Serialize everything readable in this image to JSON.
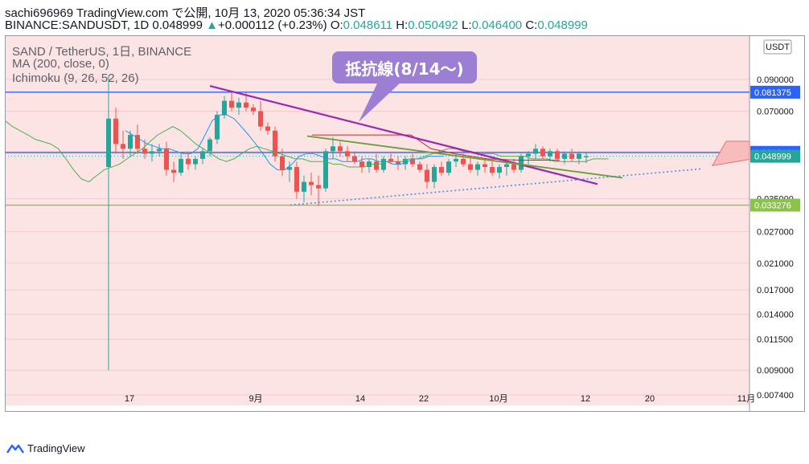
{
  "header": {
    "line1": "sachi696969 TradingView.com で公開, 10月 13, 2020 05:36:34 JST",
    "symbol": "BINANCE:SANDUSDT, 1D",
    "last": "0.048999",
    "change": "+0.000112 (+0.23%)",
    "open_label": "O:",
    "open": "0.048611",
    "high_label": "H:",
    "high": "0.050492",
    "low_label": "L:",
    "low": "0.046400",
    "close_label": "C:",
    "close": "0.048999"
  },
  "legend": {
    "title": "SAND / TetherUS, 1日, BINANCE",
    "ma": "MA (200, close, 0)",
    "ichimoku": "Ichimoku (9, 26, 52, 26)"
  },
  "callout": "抵抗線(8/14〜)",
  "currency_badge": "USDT",
  "footer": {
    "brand": "TradingView"
  },
  "colors": {
    "up": "#26a69a",
    "down": "#ef5350",
    "resistance": "#9c27b0",
    "support_dotted": "#4f8fe8",
    "bg": "#fde4e4"
  },
  "chart_data": {
    "type": "candlestick",
    "y_scale": "log",
    "y_ticks": [
      "0.090000",
      "0.070000",
      "0.050000",
      "0.035000",
      "0.027000",
      "0.021000",
      "0.017000",
      "0.014000",
      "0.011500",
      "0.009000",
      "0.007400"
    ],
    "x_ticks": [
      "17",
      "9月",
      "14",
      "22",
      "10月",
      "12",
      "20",
      "11月"
    ],
    "price_labels": [
      {
        "value": "0.081375",
        "color": "#2962ff"
      },
      {
        "value": "0.050541",
        "color": "#2962ff"
      },
      {
        "value": "0.048999",
        "color": "#26a69a"
      },
      {
        "value": "0.033276",
        "color": "#8bc34a"
      }
    ],
    "horizontal_lines": [
      {
        "price": 0.081375,
        "color": "#2962ff"
      },
      {
        "price": 0.050541,
        "color": "#2962ff"
      },
      {
        "price": 0.033276,
        "color": "#8bc34a"
      }
    ],
    "candles": [
      [
        0.045,
        0.093,
        0.009,
        0.066
      ],
      [
        0.066,
        0.072,
        0.05,
        0.054
      ],
      [
        0.054,
        0.06,
        0.048,
        0.052
      ],
      [
        0.052,
        0.06,
        0.049,
        0.058
      ],
      [
        0.058,
        0.063,
        0.05,
        0.052
      ],
      [
        0.052,
        0.056,
        0.048,
        0.05
      ],
      [
        0.05,
        0.054,
        0.047,
        0.051
      ],
      [
        0.051,
        0.054,
        0.049,
        0.052
      ],
      [
        0.052,
        0.055,
        0.042,
        0.044
      ],
      [
        0.044,
        0.047,
        0.04,
        0.043
      ],
      [
        0.043,
        0.05,
        0.042,
        0.048
      ],
      [
        0.048,
        0.05,
        0.044,
        0.046
      ],
      [
        0.046,
        0.049,
        0.044,
        0.048
      ],
      [
        0.048,
        0.052,
        0.046,
        0.051
      ],
      [
        0.051,
        0.057,
        0.049,
        0.056
      ],
      [
        0.056,
        0.07,
        0.054,
        0.068
      ],
      [
        0.068,
        0.079,
        0.066,
        0.076
      ],
      [
        0.076,
        0.082,
        0.07,
        0.072
      ],
      [
        0.072,
        0.078,
        0.068,
        0.075
      ],
      [
        0.075,
        0.082,
        0.07,
        0.072
      ],
      [
        0.072,
        0.074,
        0.068,
        0.07
      ],
      [
        0.07,
        0.076,
        0.06,
        0.062
      ],
      [
        0.062,
        0.064,
        0.058,
        0.06
      ],
      [
        0.06,
        0.062,
        0.047,
        0.049
      ],
      [
        0.049,
        0.052,
        0.042,
        0.044
      ],
      [
        0.044,
        0.047,
        0.04,
        0.045
      ],
      [
        0.045,
        0.047,
        0.035,
        0.037
      ],
      [
        0.037,
        0.042,
        0.034,
        0.04
      ],
      [
        0.04,
        0.043,
        0.036,
        0.039
      ],
      [
        0.039,
        0.042,
        0.033,
        0.038
      ],
      [
        0.038,
        0.052,
        0.037,
        0.051
      ],
      [
        0.051,
        0.057,
        0.048,
        0.053
      ],
      [
        0.053,
        0.055,
        0.049,
        0.051
      ],
      [
        0.051,
        0.053,
        0.047,
        0.049
      ],
      [
        0.049,
        0.051,
        0.046,
        0.047
      ],
      [
        0.047,
        0.049,
        0.043,
        0.045
      ],
      [
        0.045,
        0.048,
        0.043,
        0.047
      ],
      [
        0.047,
        0.05,
        0.043,
        0.044
      ],
      [
        0.044,
        0.049,
        0.043,
        0.048
      ],
      [
        0.048,
        0.05,
        0.046,
        0.047
      ],
      [
        0.047,
        0.049,
        0.044,
        0.046
      ],
      [
        0.046,
        0.049,
        0.044,
        0.048
      ],
      [
        0.048,
        0.05,
        0.045,
        0.046
      ],
      [
        0.046,
        0.047,
        0.043,
        0.044
      ],
      [
        0.044,
        0.046,
        0.038,
        0.04
      ],
      [
        0.04,
        0.046,
        0.038,
        0.045
      ],
      [
        0.045,
        0.047,
        0.042,
        0.043
      ],
      [
        0.043,
        0.048,
        0.042,
        0.047
      ],
      [
        0.047,
        0.05,
        0.045,
        0.048
      ],
      [
        0.048,
        0.05,
        0.045,
        0.046
      ],
      [
        0.046,
        0.049,
        0.043,
        0.044
      ],
      [
        0.044,
        0.047,
        0.042,
        0.046
      ],
      [
        0.046,
        0.048,
        0.043,
        0.045
      ],
      [
        0.045,
        0.047,
        0.042,
        0.043
      ],
      [
        0.043,
        0.046,
        0.041,
        0.045
      ],
      [
        0.045,
        0.047,
        0.042,
        0.046
      ],
      [
        0.046,
        0.048,
        0.043,
        0.044
      ],
      [
        0.044,
        0.05,
        0.043,
        0.049
      ],
      [
        0.049,
        0.051,
        0.046,
        0.05
      ],
      [
        0.05,
        0.054,
        0.048,
        0.052
      ],
      [
        0.052,
        0.053,
        0.048,
        0.049
      ],
      [
        0.049,
        0.052,
        0.047,
        0.051
      ],
      [
        0.051,
        0.052,
        0.047,
        0.048
      ],
      [
        0.048,
        0.051,
        0.046,
        0.05
      ],
      [
        0.05,
        0.052,
        0.047,
        0.048
      ],
      [
        0.048,
        0.051,
        0.046,
        0.05
      ],
      [
        0.0486,
        0.0505,
        0.0464,
        0.049
      ]
    ],
    "ma200": [
      0.065,
      0.062,
      0.06,
      0.058,
      0.056,
      0.055,
      0.054,
      0.052,
      0.048,
      0.044,
      0.041,
      0.04,
      0.042,
      0.044,
      0.045,
      0.046,
      0.048,
      0.05,
      0.052,
      0.055,
      0.058,
      0.06,
      0.062,
      0.06,
      0.057,
      0.054,
      0.052,
      0.05,
      0.048,
      0.047,
      0.048,
      0.05,
      0.052,
      0.053,
      0.052,
      0.051,
      0.05,
      0.049,
      0.048,
      0.048,
      0.047,
      0.047,
      0.047,
      0.046,
      0.046,
      0.045,
      0.045,
      0.045,
      0.046,
      0.046,
      0.047,
      0.047,
      0.047,
      0.048,
      0.048,
      0.049,
      0.05,
      0.051,
      0.052,
      0.052,
      0.051,
      0.051,
      0.05,
      0.05,
      0.05,
      0.049,
      0.049,
      0.049,
      0.049,
      0.048,
      0.048,
      0.048,
      0.047,
      0.047,
      0.047,
      0.047,
      0.047,
      0.048,
      0.048,
      0.048
    ]
  }
}
